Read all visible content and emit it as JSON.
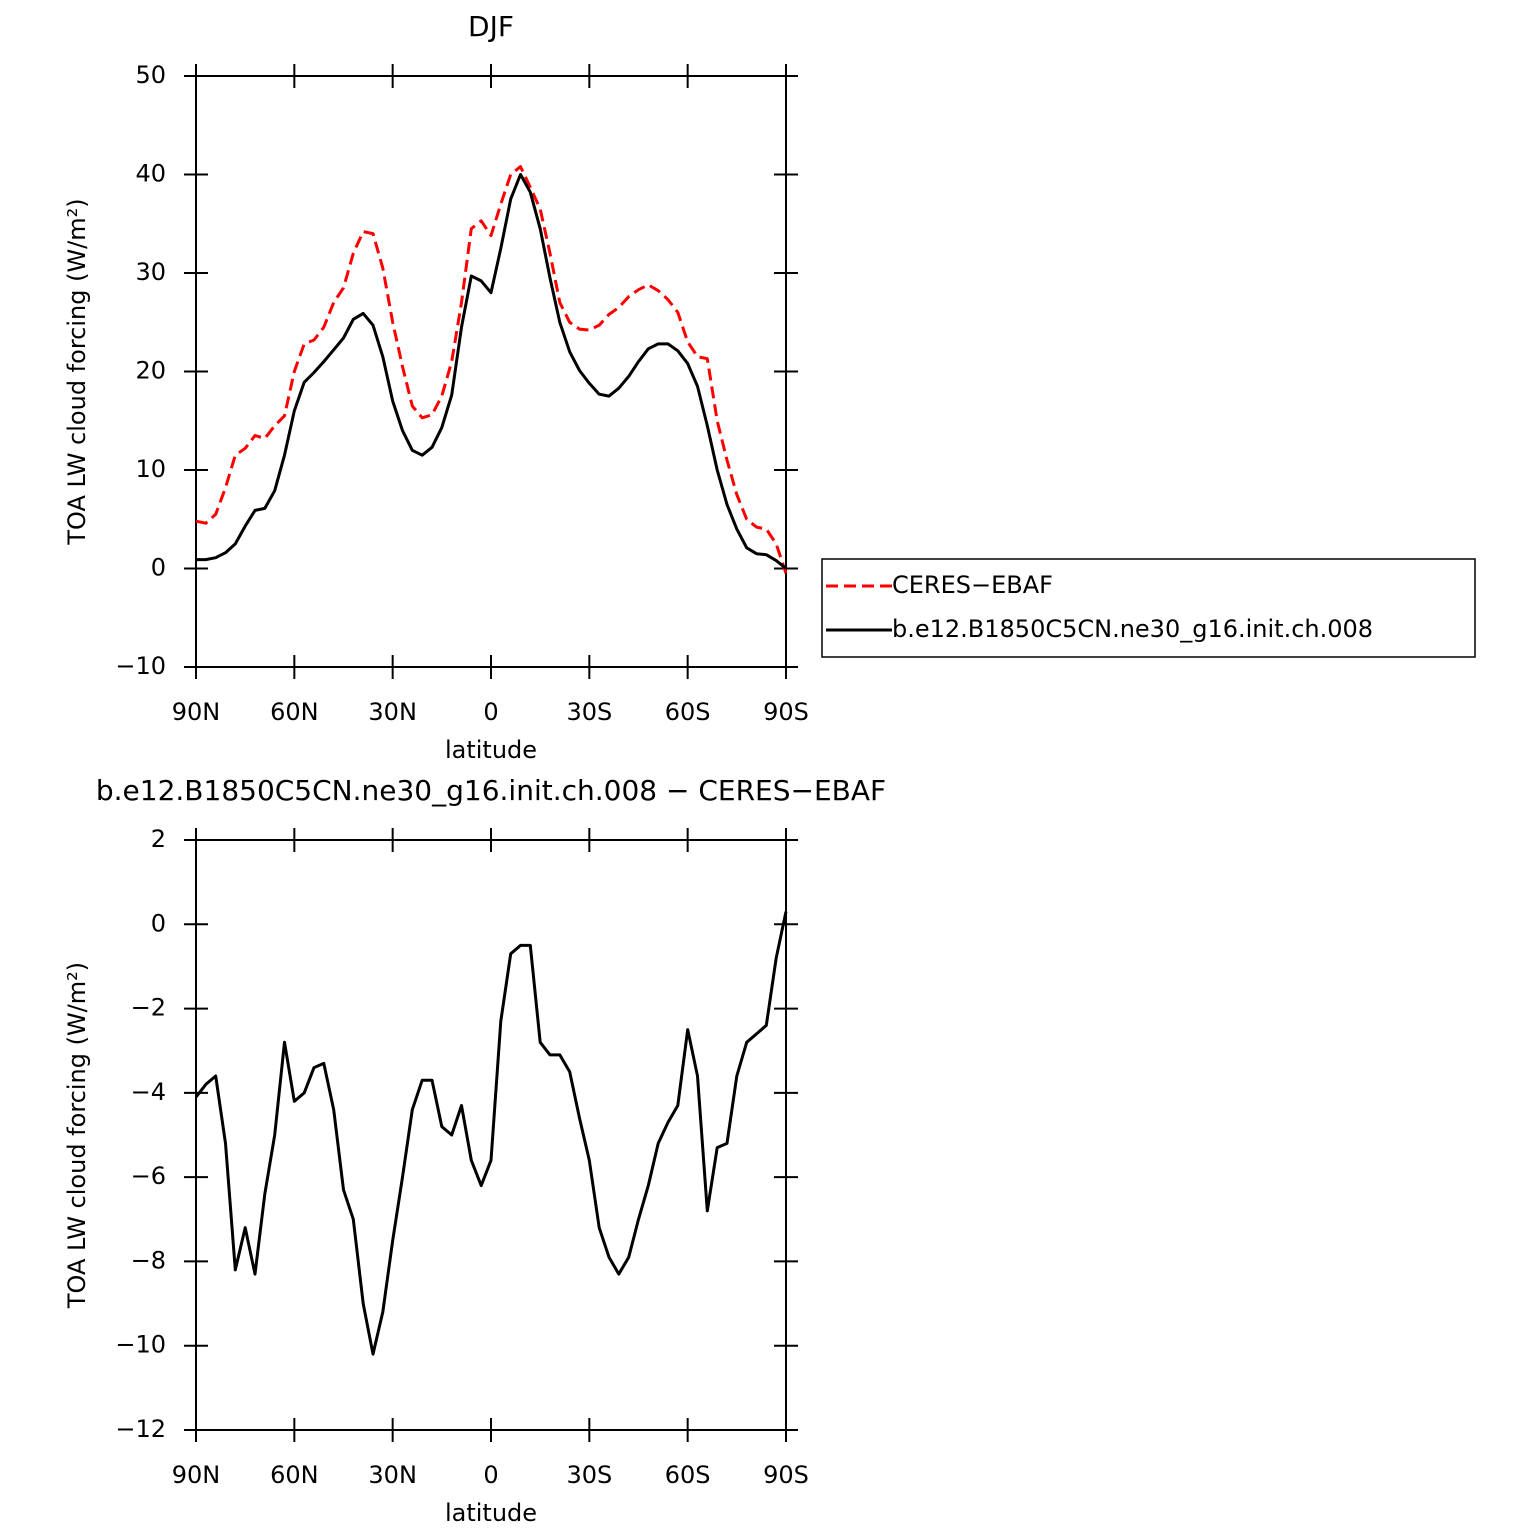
{
  "chart_data": [
    {
      "type": "line",
      "title": "DJF",
      "x_label": "latitude",
      "y_label": "TOA LW cloud forcing (W/m²)",
      "x": [
        90,
        87,
        84,
        81,
        78,
        75,
        72,
        69,
        66,
        63,
        60,
        57,
        54,
        51,
        48,
        45,
        42,
        39,
        36,
        33,
        30,
        27,
        24,
        21,
        18,
        15,
        12,
        9,
        6,
        3,
        0,
        -3,
        -6,
        -9,
        -12,
        -15,
        -18,
        -21,
        -24,
        -27,
        -30,
        -33,
        -36,
        -39,
        -42,
        -45,
        -48,
        -51,
        -54,
        -57,
        -60,
        -63,
        -66,
        -69,
        -72,
        -75,
        -78,
        -81,
        -84,
        -87,
        -90
      ],
      "series": [
        {
          "name": "CERES−EBAF",
          "color": "#ff0000",
          "dash": true,
          "values": [
            4.8,
            4.6,
            5.5,
            8.2,
            11.5,
            12.2,
            13.5,
            13.2,
            14.5,
            15.5,
            20,
            22.8,
            23.2,
            24.5,
            27,
            28.5,
            32,
            34.2,
            34,
            30.5,
            25,
            20.5,
            16.5,
            15.3,
            15.6,
            17.5,
            21,
            27,
            34.5,
            35.3,
            33.8,
            37,
            40,
            40.8,
            38.7,
            36.5,
            32,
            27,
            25,
            24.3,
            24.2,
            24.7,
            25.8,
            26.5,
            27.6,
            28.3,
            28.8,
            28.2,
            27.3,
            26,
            23,
            21.5,
            21.3,
            15,
            11,
            7.5,
            5,
            4.2,
            4,
            2.5,
            -0.5
          ]
        },
        {
          "name": "b.e12.B1850C5CN.ne30_g16.init.ch.008",
          "color": "#000000",
          "dash": false,
          "values": [
            0.9,
            0.9,
            1.1,
            1.6,
            2.5,
            4.3,
            5.9,
            6.1,
            7.9,
            11.5,
            16,
            18.9,
            19.9,
            21,
            22.2,
            23.4,
            25.3,
            25.9,
            24.7,
            21.5,
            17,
            14,
            12,
            11.5,
            12.3,
            14.3,
            17.6,
            24.5,
            29.7,
            29.2,
            28,
            32.5,
            37.5,
            40,
            38.2,
            34.5,
            29.5,
            25,
            22,
            20.1,
            18.8,
            17.7,
            17.5,
            18.3,
            19.5,
            21,
            22.3,
            22.8,
            22.8,
            22.1,
            20.8,
            18.5,
            14.5,
            10,
            6.5,
            4,
            2.1,
            1.5,
            1.4,
            0.8,
            0
          ]
        }
      ],
      "xlim": [
        90,
        -90
      ],
      "xticks": [
        {
          "value": 90,
          "label": "90N"
        },
        {
          "value": 60,
          "label": "60N"
        },
        {
          "value": 30,
          "label": "30N"
        },
        0,
        {
          "value": -30,
          "label": "30S"
        },
        {
          "value": -60,
          "label": "60S"
        },
        {
          "value": -90,
          "label": "90S"
        }
      ],
      "ylim": [
        -10,
        50
      ],
      "yticks": [
        {
          "value": -10,
          "label": "−10"
        },
        0,
        10,
        20,
        30,
        40,
        50
      ],
      "legend": "right"
    },
    {
      "type": "line",
      "title": "b.e12.B1850C5CN.ne30_g16.init.ch.008 − CERES−EBAF",
      "x_label": "latitude",
      "y_label": "TOA LW cloud forcing (W/m²)",
      "x": [
        90,
        87,
        84,
        81,
        78,
        75,
        72,
        69,
        66,
        63,
        60,
        57,
        54,
        51,
        48,
        45,
        42,
        39,
        36,
        33,
        30,
        27,
        24,
        21,
        18,
        15,
        12,
        9,
        6,
        3,
        0,
        -3,
        -6,
        -9,
        -12,
        -15,
        -18,
        -21,
        -24,
        -27,
        -30,
        -33,
        -36,
        -39,
        -42,
        -45,
        -48,
        -51,
        -54,
        -57,
        -60,
        -63,
        -66,
        -69,
        -72,
        -75,
        -78,
        -81,
        -84,
        -87,
        -90
      ],
      "values": [
        -4.1,
        -3.8,
        -3.6,
        -5.2,
        -8.2,
        -7.2,
        -8.3,
        -6.4,
        -5,
        -2.8,
        -4.2,
        -4,
        -3.4,
        -3.3,
        -4.4,
        -6.3,
        -7,
        -9,
        -10.2,
        -9.2,
        -7.5,
        -6,
        -4.4,
        -3.7,
        -3.7,
        -4.8,
        -5,
        -4.3,
        -5.6,
        -6.2,
        -5.6,
        -2.3,
        -0.7,
        -0.5,
        -0.5,
        -2.8,
        -3.1,
        -3.1,
        -3.5,
        -4.6,
        -5.6,
        -7.2,
        -7.9,
        -8.3,
        -7.9,
        -7,
        -6.2,
        -5.2,
        -4.7,
        -4.3,
        -2.5,
        -3.6,
        -6.8,
        -5.3,
        -5.2,
        -3.6,
        -2.8,
        -2.6,
        -2.4,
        -0.8,
        0.3
      ],
      "color": "#000000",
      "xlim": [
        90,
        -90
      ],
      "xticks": [
        {
          "value": 90,
          "label": "90N"
        },
        {
          "value": 60,
          "label": "60N"
        },
        {
          "value": 30,
          "label": "30N"
        },
        0,
        {
          "value": -30,
          "label": "30S"
        },
        {
          "value": -60,
          "label": "60S"
        },
        {
          "value": -90,
          "label": "90S"
        }
      ],
      "ylim": [
        -12,
        2
      ],
      "yticks": [
        {
          "value": -12,
          "label": "−12"
        },
        {
          "value": -10,
          "label": "−10"
        },
        {
          "value": -8,
          "label": "−8"
        },
        {
          "value": -6,
          "label": "−6"
        },
        {
          "value": -4,
          "label": "−4"
        },
        {
          "value": -2,
          "label": "−2"
        },
        0,
        2
      ]
    }
  ]
}
